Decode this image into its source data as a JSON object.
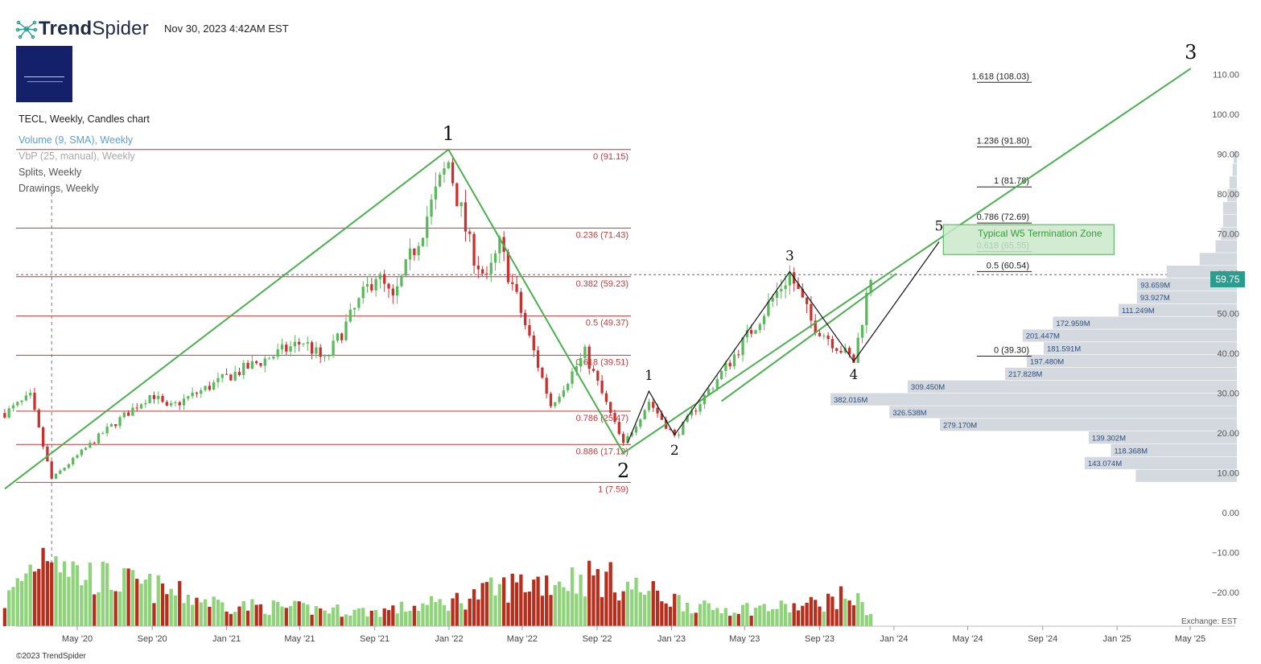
{
  "header": {
    "brand_name_bold": "Trend",
    "brand_name_rest": "Spider",
    "timestamp": "Nov 30, 2023 4:42AM EST",
    "indicators": [
      "TECL, Weekly, Candles chart",
      "Volume (9, SMA), Weekly",
      "VbP (25, manual), Weekly",
      "Splits, Weekly",
      "Drawings, Weekly"
    ]
  },
  "footer": {
    "copyright": "©2023 TrendSpider",
    "exchange": "Exchange: EST"
  },
  "colors": {
    "up": "#5cb85c",
    "down": "#c9312f",
    "vol_up": "#8fd37a",
    "vol_down": "#b82e1c",
    "fib_left": "#c0393b",
    "trend_green": "#4caf50",
    "zone_fill": "#c9e9c9",
    "vbp_bar": "#d4d9df",
    "price_tag": "#2a9d8f"
  },
  "chart_data": {
    "type": "candlestick",
    "symbol": "TECL",
    "interval": "Weekly",
    "last_price": "59.75",
    "y_ticks": [
      "−20.00",
      "−10.00",
      "0.00",
      "10.00",
      "20.00",
      "30.00",
      "40.00",
      "50.00",
      "60.00",
      "70.00",
      "80.00",
      "90.00",
      "100.00",
      "110.00"
    ],
    "y_tick_values": [
      -20,
      -10,
      0,
      10,
      20,
      30,
      40,
      50,
      60,
      70,
      80,
      90,
      100,
      110
    ],
    "x_ticks": [
      "May '20",
      "Sep '20",
      "Jan '21",
      "May '21",
      "Sep '21",
      "Jan '22",
      "May '22",
      "Sep '22",
      "Jan '23",
      "May '23",
      "Sep '23",
      "Jan '24",
      "May '24",
      "Sep '24",
      "Jan '25",
      "May '25"
    ],
    "x_tick_dates": [
      "2020-05-01",
      "2020-09-01",
      "2021-01-01",
      "2021-05-01",
      "2021-09-01",
      "2022-01-01",
      "2022-05-01",
      "2022-09-01",
      "2023-01-01",
      "2023-05-01",
      "2023-09-01",
      "2024-01-01",
      "2024-05-01",
      "2024-09-01",
      "2025-01-01",
      "2025-05-01"
    ],
    "price_path": [
      [
        "2020-01-03",
        25
      ],
      [
        "2020-02-14",
        29
      ],
      [
        "2020-03-20",
        8.5
      ],
      [
        "2020-06-12",
        20
      ],
      [
        "2020-09-01",
        30
      ],
      [
        "2020-09-25",
        26
      ],
      [
        "2021-01-01",
        34
      ],
      [
        "2021-05-07",
        43
      ],
      [
        "2021-06-11",
        38
      ],
      [
        "2021-09-03",
        60
      ],
      [
        "2021-10-01",
        53
      ],
      [
        "2021-12-31",
        88
      ],
      [
        "2022-02-04",
        67
      ],
      [
        "2022-03-04",
        58
      ],
      [
        "2022-03-25",
        67
      ],
      [
        "2022-06-17",
        27
      ],
      [
        "2022-08-12",
        40
      ],
      [
        "2022-10-14",
        17
      ],
      [
        "2022-11-25",
        28
      ],
      [
        "2023-01-06",
        19
      ],
      [
        "2023-04-07",
        38
      ],
      [
        "2023-07-14",
        60
      ],
      [
        "2023-08-18",
        48
      ],
      [
        "2023-10-27",
        38
      ],
      [
        "2023-11-24",
        59.75
      ]
    ],
    "volume_path": [
      [
        "2020-01-03",
        2.5
      ],
      [
        "2020-03-20",
        9
      ],
      [
        "2020-05-01",
        5.5
      ],
      [
        "2020-09-01",
        4
      ],
      [
        "2021-01-01",
        2.2
      ],
      [
        "2021-09-01",
        1.5
      ],
      [
        "2022-01-01",
        2.5
      ],
      [
        "2022-05-01",
        4.5
      ],
      [
        "2022-09-01",
        5.2
      ],
      [
        "2022-11-01",
        4
      ],
      [
        "2023-03-01",
        1.8
      ],
      [
        "2023-08-01",
        2
      ],
      [
        "2023-10-20",
        3.2
      ],
      [
        "2023-11-24",
        1.5
      ]
    ],
    "fib_retracement": [
      {
        "label": "0 (91.15)",
        "value": 91.15
      },
      {
        "label": "0.236 (71.43)",
        "value": 71.43
      },
      {
        "label": "0.382 (59.23)",
        "value": 59.23
      },
      {
        "label": "0.5 (49.37)",
        "value": 49.37
      },
      {
        "label": "0.618 (39.51)",
        "value": 39.51
      },
      {
        "label": "0.786 (25.47)",
        "value": 25.47
      },
      {
        "label": "0.886 (17.12)",
        "value": 17.12
      },
      {
        "label": "1 (7.59)",
        "value": 7.59
      }
    ],
    "fib_extension": [
      {
        "label": "1.618 (108.03)",
        "value": 108.03
      },
      {
        "label": "1.236 (91.80)",
        "value": 91.8
      },
      {
        "label": "1 (81.78)",
        "value": 81.78
      },
      {
        "label": "0.786 (72.69)",
        "value": 72.69
      },
      {
        "label": "0.618 (65.55)",
        "value": 65.55
      },
      {
        "label": "0.5 (60.54)",
        "value": 60.54
      },
      {
        "label": "0 (39.30)",
        "value": 39.3
      }
    ],
    "termination_zone": {
      "label": "Typical W5 Termination Zone",
      "from_date": "2024-03-22",
      "to_date": "2024-12-27",
      "low": 64.8,
      "high": 72.3
    },
    "vbp_labels": [
      "93.659M",
      "93.927M",
      "111.249M",
      "172.959M",
      "201.447M",
      "181.591M",
      "197.480M",
      "217.828M",
      "309.450M",
      "382.016M",
      "326.538M",
      "279.170M",
      "139.302M",
      "118.368M",
      "143.074M"
    ],
    "vbp_profile": [
      {
        "low": 7.6,
        "high": 10.8,
        "volume": 95
      },
      {
        "low": 10.8,
        "high": 14,
        "volume": 143.074
      },
      {
        "low": 14,
        "high": 17.2,
        "volume": 118.368
      },
      {
        "low": 17.2,
        "high": 20.4,
        "volume": 139.302
      },
      {
        "low": 20.4,
        "high": 23.6,
        "volume": 279.17
      },
      {
        "low": 23.6,
        "high": 26.8,
        "volume": 326.538
      },
      {
        "low": 26.8,
        "high": 30,
        "volume": 382.016
      },
      {
        "low": 30,
        "high": 33.2,
        "volume": 309.45
      },
      {
        "low": 33.2,
        "high": 36.4,
        "volume": 217.828
      },
      {
        "low": 36.4,
        "high": 39.6,
        "volume": 197.48
      },
      {
        "low": 39.6,
        "high": 42.8,
        "volume": 181.591
      },
      {
        "low": 42.8,
        "high": 46,
        "volume": 201.447
      },
      {
        "low": 46,
        "high": 49.2,
        "volume": 172.959
      },
      {
        "low": 49.2,
        "high": 52.4,
        "volume": 111.249
      },
      {
        "low": 52.4,
        "high": 55.6,
        "volume": 93.927
      },
      {
        "low": 55.6,
        "high": 58.8,
        "volume": 93.659
      },
      {
        "low": 58.8,
        "high": 62,
        "volume": 66
      },
      {
        "low": 62,
        "high": 65.2,
        "volume": 35
      },
      {
        "low": 65.2,
        "high": 68.4,
        "volume": 20
      },
      {
        "low": 68.4,
        "high": 71.6,
        "volume": 15
      },
      {
        "low": 71.6,
        "high": 74.8,
        "volume": 13
      },
      {
        "low": 74.8,
        "high": 78,
        "volume": 13
      },
      {
        "low": 78,
        "high": 81.2,
        "volume": 9
      },
      {
        "low": 81.2,
        "high": 84.4,
        "volume": 7
      },
      {
        "low": 84.4,
        "high": 87.6,
        "volume": 4
      },
      {
        "low": 87.6,
        "high": 90.8,
        "volume": 3
      }
    ],
    "wave_labels": [
      {
        "text": "1",
        "date": "2021-12-31",
        "price": 91.15,
        "major": true
      },
      {
        "text": "2",
        "date": "2022-10-14",
        "price": 15,
        "major": true
      },
      {
        "text": "3",
        "date": "2025-05-02",
        "price": 111.5,
        "major": true
      },
      {
        "text": "1",
        "date": "2022-11-25",
        "price": 30.5,
        "major": false
      },
      {
        "text": "2",
        "date": "2023-01-06",
        "price": 19,
        "major": false
      },
      {
        "text": "3",
        "date": "2023-07-14",
        "price": 60.5,
        "major": false
      },
      {
        "text": "4",
        "date": "2023-10-27",
        "price": 38,
        "major": false
      },
      {
        "text": "5",
        "date": "2024-03-15",
        "price": 68,
        "major": false
      }
    ],
    "trend_lines": [
      {
        "color": "green",
        "points": [
          [
            "2020-01-03",
            6
          ],
          [
            "2021-12-31",
            91.15
          ],
          [
            "2022-10-14",
            15
          ],
          [
            "2025-05-02",
            111.5
          ]
        ]
      },
      {
        "color": "green",
        "points": [
          [
            "2023-03-24",
            28
          ],
          [
            "2024-01-05",
            60
          ]
        ]
      },
      {
        "color": "black",
        "points": [
          [
            "2022-10-21",
            17.5
          ],
          [
            "2022-11-25",
            30.5
          ],
          [
            "2023-01-06",
            19.5
          ],
          [
            "2023-07-14",
            60.5
          ],
          [
            "2023-10-27",
            38
          ],
          [
            "2024-03-15",
            68
          ]
        ]
      }
    ]
  }
}
